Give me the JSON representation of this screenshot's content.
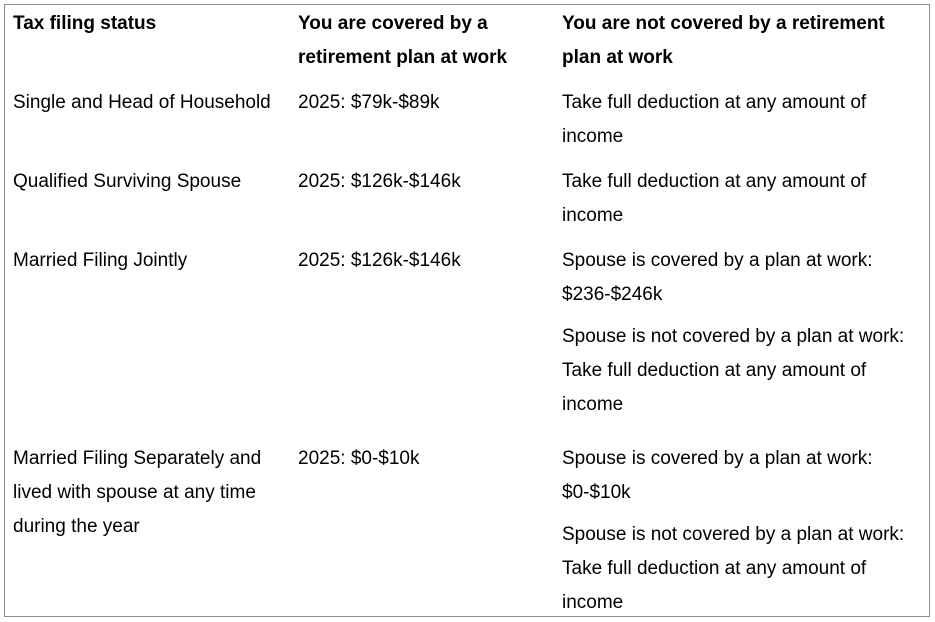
{
  "table": {
    "header": [
      "Tax filing status",
      "You are covered by a retirement plan at work",
      "You are not covered by a retirement plan at work"
    ],
    "rows": [
      [
        [
          "Single and Head of Household"
        ],
        [
          "2025: $79k-$89k"
        ],
        [
          "Take full deduction at any amount of income"
        ]
      ],
      [
        [
          "Qualified Surviving Spouse"
        ],
        [
          "2025: $126k-$146k"
        ],
        [
          "Take full deduction at any amount of income"
        ]
      ],
      [
        [
          "Married Filing Jointly"
        ],
        [
          "2025: $126k-$146k"
        ],
        [
          "Spouse is covered by a plan at work: $236-$246k",
          "Spouse is not covered by a plan at work: Take full deduction at any amount of income"
        ]
      ],
      [
        [
          "Married Filing Separately and lived with spouse at any time during the year"
        ],
        [
          "2025: $0-$10k"
        ],
        [
          "Spouse is covered by a plan at work: $0-$10k",
          "Spouse is not covered by a plan at work: Take full deduction at any amount of income"
        ]
      ]
    ]
  }
}
